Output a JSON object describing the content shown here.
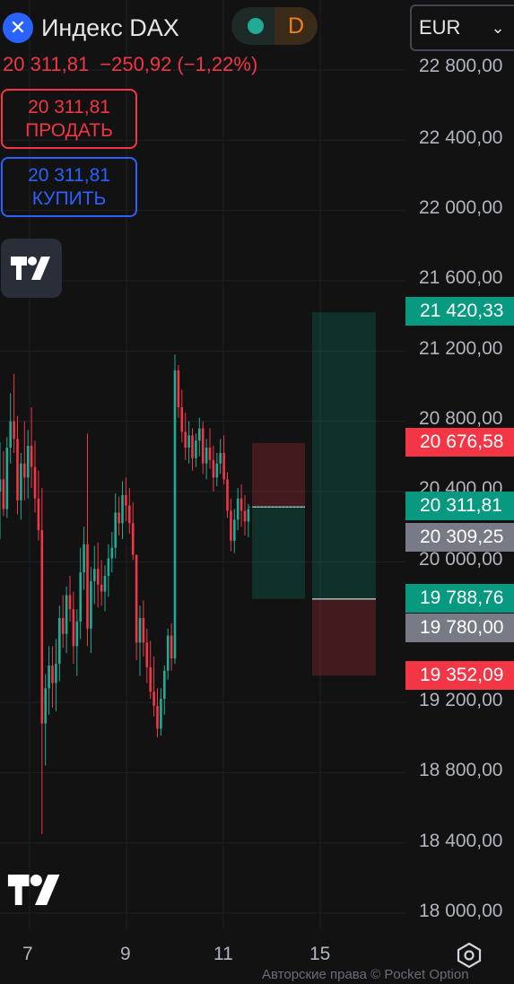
{
  "header": {
    "logo_icon": "close-x-icon",
    "symbol_name": "Индекс DAX",
    "market_status_color": "#22ab94",
    "session_letter": "D",
    "currency": "EUR"
  },
  "quote": {
    "last_price": "20 311,81",
    "change": "−250,92",
    "change_percent": "(−1,22%)",
    "color": "#f23645"
  },
  "trade_buttons": {
    "sell_price": "20 311,81",
    "sell_label": "ПРОДАТЬ",
    "buy_price": "20 311,81",
    "buy_label": "КУПИТЬ",
    "sell_color": "#f23645",
    "buy_color": "#2962ff"
  },
  "price_axis": {
    "labels": [
      "22 800,00",
      "22 400,00",
      "22 000,00",
      "21 600,00",
      "21 200,00",
      "20 800,00",
      "20 400,00",
      "20 000,00",
      "19 200,00",
      "18 800,00",
      "18 400,00",
      "18 000,00"
    ]
  },
  "price_badges": [
    {
      "text": "21 420,33",
      "color": "#089981"
    },
    {
      "text": "20 676,58",
      "color": "#f23645"
    },
    {
      "text": "20 311,81",
      "color": "#089981"
    },
    {
      "text": "20 309,25",
      "color": "#787b86"
    },
    {
      "text": "19 788,76",
      "color": "#089981"
    },
    {
      "text": "19 780,00",
      "color": "#787b86"
    },
    {
      "text": "19 352,09",
      "color": "#f23645"
    }
  ],
  "time_axis": {
    "labels": [
      "7",
      "9",
      "11",
      "15"
    ]
  },
  "footer": {
    "copyright": "Авторские права © Pocket Option",
    "settings_icon": "hexagon-settings-icon"
  },
  "chart_data": {
    "type": "candlestick",
    "symbol": "Индекс DAX",
    "currency": "EUR",
    "ylim": [
      17900,
      23000
    ],
    "y_ticks": [
      18000,
      18400,
      18800,
      19200,
      20000,
      20400,
      20800,
      21200,
      21600,
      22000,
      22400,
      22800
    ],
    "x_ticks": [
      "7",
      "9",
      "11",
      "15"
    ],
    "grid": true,
    "bull_color": "#22ab94",
    "bear_color": "#f23645",
    "last_price": 20311.81,
    "candles": [
      [
        20400,
        20680,
        20130,
        20470
      ],
      [
        20470,
        20630,
        20260,
        20300
      ],
      [
        20300,
        20710,
        20250,
        20650
      ],
      [
        20650,
        20960,
        20560,
        20800
      ],
      [
        20800,
        21070,
        20620,
        20700
      ],
      [
        20700,
        20830,
        20270,
        20350
      ],
      [
        20350,
        20620,
        20240,
        20560
      ],
      [
        20560,
        20800,
        20350,
        20480
      ],
      [
        20480,
        20750,
        20360,
        20660
      ],
      [
        20660,
        20880,
        20420,
        20540
      ],
      [
        20540,
        20690,
        20280,
        20360
      ],
      [
        20360,
        20520,
        20120,
        20180
      ],
      [
        20180,
        20420,
        18450,
        19080
      ],
      [
        19080,
        19360,
        18840,
        19280
      ],
      [
        19280,
        19520,
        19130,
        19410
      ],
      [
        19410,
        19520,
        19170,
        19310
      ],
      [
        19310,
        19560,
        19150,
        19420
      ],
      [
        19420,
        19750,
        19320,
        19680
      ],
      [
        19680,
        19810,
        19510,
        19590
      ],
      [
        19590,
        19860,
        19480,
        19810
      ],
      [
        19810,
        19920,
        19660,
        19730
      ],
      [
        19730,
        19830,
        19420,
        19520
      ],
      [
        19520,
        19730,
        19350,
        19660
      ],
      [
        19660,
        20080,
        19560,
        19940
      ],
      [
        19940,
        20200,
        19840,
        20100
      ],
      [
        20100,
        20730,
        19520,
        19620
      ],
      [
        19620,
        19970,
        19480,
        19890
      ],
      [
        19890,
        20090,
        19760,
        19960
      ],
      [
        19960,
        20110,
        19740,
        19870
      ],
      [
        19870,
        20010,
        19750,
        19830
      ],
      [
        19830,
        19980,
        19720,
        19920
      ],
      [
        19920,
        20100,
        19800,
        20020
      ],
      [
        20020,
        20170,
        19940,
        20080
      ],
      [
        20080,
        20390,
        20020,
        20280
      ],
      [
        20280,
        20370,
        20150,
        20220
      ],
      [
        20220,
        20460,
        20130,
        20380
      ],
      [
        20380,
        20480,
        20230,
        20320
      ],
      [
        20320,
        20420,
        20160,
        20220
      ],
      [
        20220,
        20340,
        20010,
        20040
      ],
      [
        20040,
        20010,
        19440,
        19540
      ],
      [
        19540,
        19750,
        19350,
        19680
      ],
      [
        19680,
        19780,
        19460,
        19540
      ],
      [
        19540,
        19620,
        19310,
        19400
      ],
      [
        19400,
        19550,
        19220,
        19260
      ],
      [
        19260,
        19460,
        19120,
        19180
      ],
      [
        19180,
        19280,
        19000,
        19050
      ],
      [
        19050,
        19280,
        19010,
        19220
      ],
      [
        19220,
        19410,
        19130,
        19380
      ],
      [
        19380,
        19620,
        19330,
        19580
      ],
      [
        19580,
        19650,
        19380,
        19450
      ],
      [
        19450,
        21180,
        19420,
        21090
      ],
      [
        21090,
        21120,
        20820,
        20880
      ],
      [
        20880,
        20980,
        20680,
        20740
      ],
      [
        20740,
        20850,
        20580,
        20650
      ],
      [
        20650,
        20800,
        20560,
        20720
      ],
      [
        20720,
        20760,
        20520,
        20590
      ],
      [
        20590,
        20730,
        20540,
        20690
      ],
      [
        20690,
        20820,
        20600,
        20760
      ],
      [
        20760,
        20800,
        20500,
        20560
      ],
      [
        20560,
        20700,
        20470,
        20650
      ],
      [
        20650,
        20760,
        20530,
        20580
      ],
      [
        20580,
        20660,
        20400,
        20480
      ],
      [
        20480,
        20620,
        20430,
        20560
      ],
      [
        20560,
        20700,
        20500,
        20620
      ],
      [
        20620,
        20720,
        20440,
        20470
      ],
      [
        20470,
        20510,
        20250,
        20290
      ],
      [
        20290,
        20360,
        20060,
        20120
      ],
      [
        20120,
        20300,
        20050,
        20240
      ],
      [
        20240,
        20420,
        20180,
        20360
      ],
      [
        20360,
        20440,
        20200,
        20290
      ],
      [
        20290,
        20380,
        20150,
        20230
      ],
      [
        20230,
        20330,
        20140,
        20300
      ]
    ],
    "positions": [
      {
        "entry": 20311.81,
        "take_profit": 19788.76,
        "stop_loss": 20676.58
      },
      {
        "entry": 19788.76,
        "take_profit": 21420.33,
        "stop_loss": 19352.09
      }
    ]
  }
}
